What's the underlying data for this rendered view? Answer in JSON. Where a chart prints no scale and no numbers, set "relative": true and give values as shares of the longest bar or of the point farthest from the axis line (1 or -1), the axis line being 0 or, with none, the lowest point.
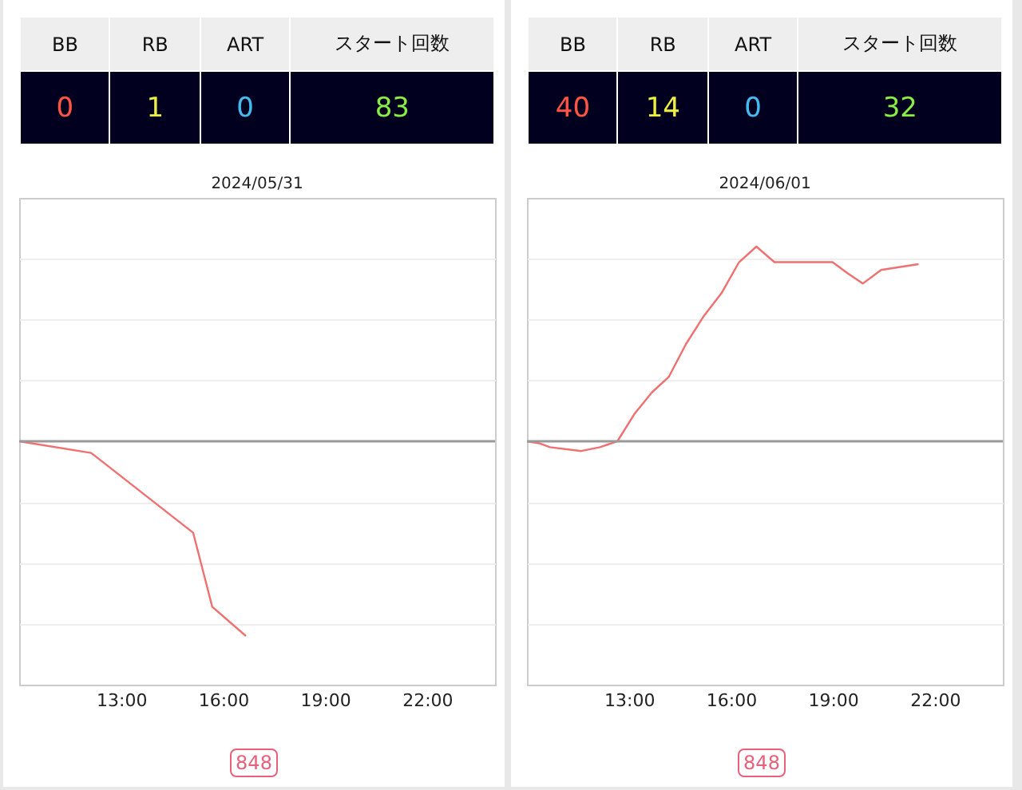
{
  "chart_data": [
    {
      "type": "other",
      "categories": [
        "BB",
        "RB",
        "ART",
        "スタート回数"
      ],
      "values": [
        0,
        1,
        0,
        83
      ],
      "data_labels": true
    },
    {
      "type": "line",
      "title": "2024/05/31",
      "relative": true,
      "grid": "y",
      "xlim": [
        10,
        24
      ],
      "xticks": [
        {
          "value": 13,
          "label": "13:00"
        },
        {
          "value": 16,
          "label": "16:00"
        },
        {
          "value": 19,
          "label": "19:00"
        },
        {
          "value": 22,
          "label": "22:00"
        }
      ],
      "x": [
        10,
        12.12,
        15.12,
        15.68,
        16.67
      ],
      "series": [
        {
          "color": "#f07070",
          "values": [
            0,
            -0.06,
            -0.47,
            -0.85,
            -1
          ]
        }
      ],
      "ref_lines": [
        {
          "axis": "y",
          "value": 0,
          "color": "#999999"
        }
      ],
      "annotations": [
        "848"
      ]
    },
    {
      "type": "other",
      "categories": [
        "BB",
        "RB",
        "ART",
        "スタート回数"
      ],
      "values": [
        40,
        14,
        0,
        32
      ],
      "data_labels": true
    },
    {
      "type": "line",
      "title": "2024/06/01",
      "relative": true,
      "grid": "y",
      "xlim": [
        10,
        24
      ],
      "xticks": [
        {
          "value": 13,
          "label": "13:00"
        },
        {
          "value": 16,
          "label": "16:00"
        },
        {
          "value": 19,
          "label": "19:00"
        },
        {
          "value": 22,
          "label": "22:00"
        }
      ],
      "x": [
        10,
        10.36,
        10.67,
        11.6,
        12.15,
        12.66,
        13.16,
        13.67,
        14.17,
        14.68,
        15.19,
        15.72,
        16.24,
        16.75,
        17.28,
        17.9,
        18.99,
        19.46,
        19.88,
        20.42,
        21.52
      ],
      "series": [
        {
          "color": "#f07070",
          "values": [
            0,
            -0.01,
            -0.03,
            -0.05,
            -0.03,
            0,
            0.14,
            0.25,
            0.33,
            0.5,
            0.64,
            0.76,
            0.92,
            1,
            0.92,
            0.92,
            0.92,
            0.86,
            0.81,
            0.88,
            0.91
          ]
        }
      ],
      "ref_lines": [
        {
          "axis": "y",
          "value": 0,
          "color": "#999999"
        }
      ],
      "annotations": [
        "848"
      ]
    }
  ]
}
